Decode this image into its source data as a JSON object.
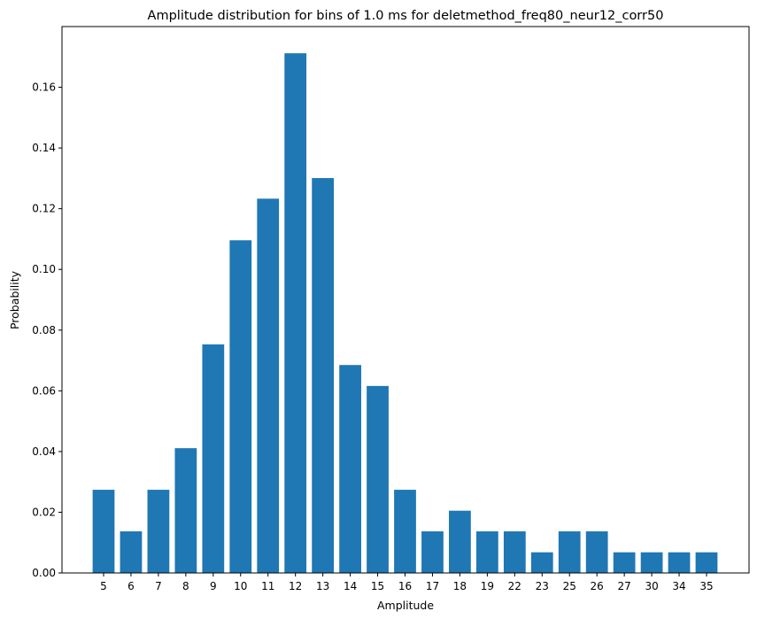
{
  "chart_data": {
    "type": "bar",
    "title": "Amplitude distribution for bins of 1.0 ms for deletmethod_freq80_neur12_corr50",
    "xlabel": "Amplitude",
    "ylabel": "Probability",
    "categories": [
      "5",
      "6",
      "7",
      "8",
      "9",
      "10",
      "11",
      "12",
      "13",
      "14",
      "15",
      "16",
      "17",
      "18",
      "19",
      "22",
      "23",
      "25",
      "26",
      "27",
      "30",
      "34",
      "35"
    ],
    "values": [
      0.0274,
      0.0137,
      0.0274,
      0.0411,
      0.0753,
      0.1096,
      0.1233,
      0.1712,
      0.1301,
      0.0685,
      0.0616,
      0.0274,
      0.0137,
      0.0205,
      0.0137,
      0.0137,
      0.0068,
      0.0137,
      0.0137,
      0.0068,
      0.0068,
      0.0068,
      0.0068
    ],
    "ylim": [
      0,
      0.18
    ],
    "yticks": [
      0.0,
      0.02,
      0.04,
      0.06,
      0.08,
      0.1,
      0.12,
      0.14,
      0.16
    ],
    "ytick_labels": [
      "0.00",
      "0.02",
      "0.04",
      "0.06",
      "0.08",
      "0.10",
      "0.12",
      "0.14",
      "0.16"
    ],
    "bar_color": "#1f77b4",
    "grid": false,
    "legend": "none"
  }
}
